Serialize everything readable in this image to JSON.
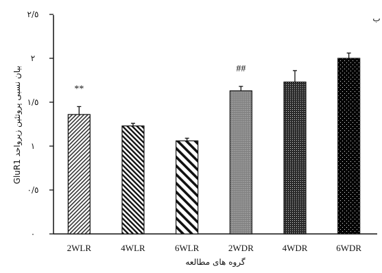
{
  "chart_data": {
    "type": "bar",
    "categories": [
      "2WLR",
      "4WLR",
      "6WLR",
      "2WDR",
      "4WDR",
      "6WDR"
    ],
    "values": [
      1.36,
      1.23,
      1.06,
      1.63,
      1.73,
      2.0
    ],
    "error_upper": [
      0.09,
      0.03,
      0.03,
      0.05,
      0.13,
      0.06
    ],
    "significance": [
      "**",
      "",
      "",
      "##",
      "",
      ""
    ],
    "patterns": [
      "diag-fine-right",
      "diag-medium-left",
      "diag-wide-left",
      "dense-gray",
      "dots-dark",
      "dots-black"
    ],
    "ylim": [
      0,
      2.5
    ],
    "yticks": [
      0,
      0.5,
      1,
      1.5,
      2,
      2.5
    ],
    "ytick_labels": [
      "٠",
      "٠/٥",
      "١",
      "١/٥",
      "٢",
      "٢/٥"
    ],
    "ylabel": "بیان نسبی پروتئین زیرواحد GluR1",
    "xlabel": "گروه های مطالعه",
    "corner_mark": "ب",
    "grid": false,
    "legend": "none",
    "colors": {
      "axis": "#111111",
      "bar_edge": "#111111",
      "bar_fill": "#ffffff"
    }
  }
}
